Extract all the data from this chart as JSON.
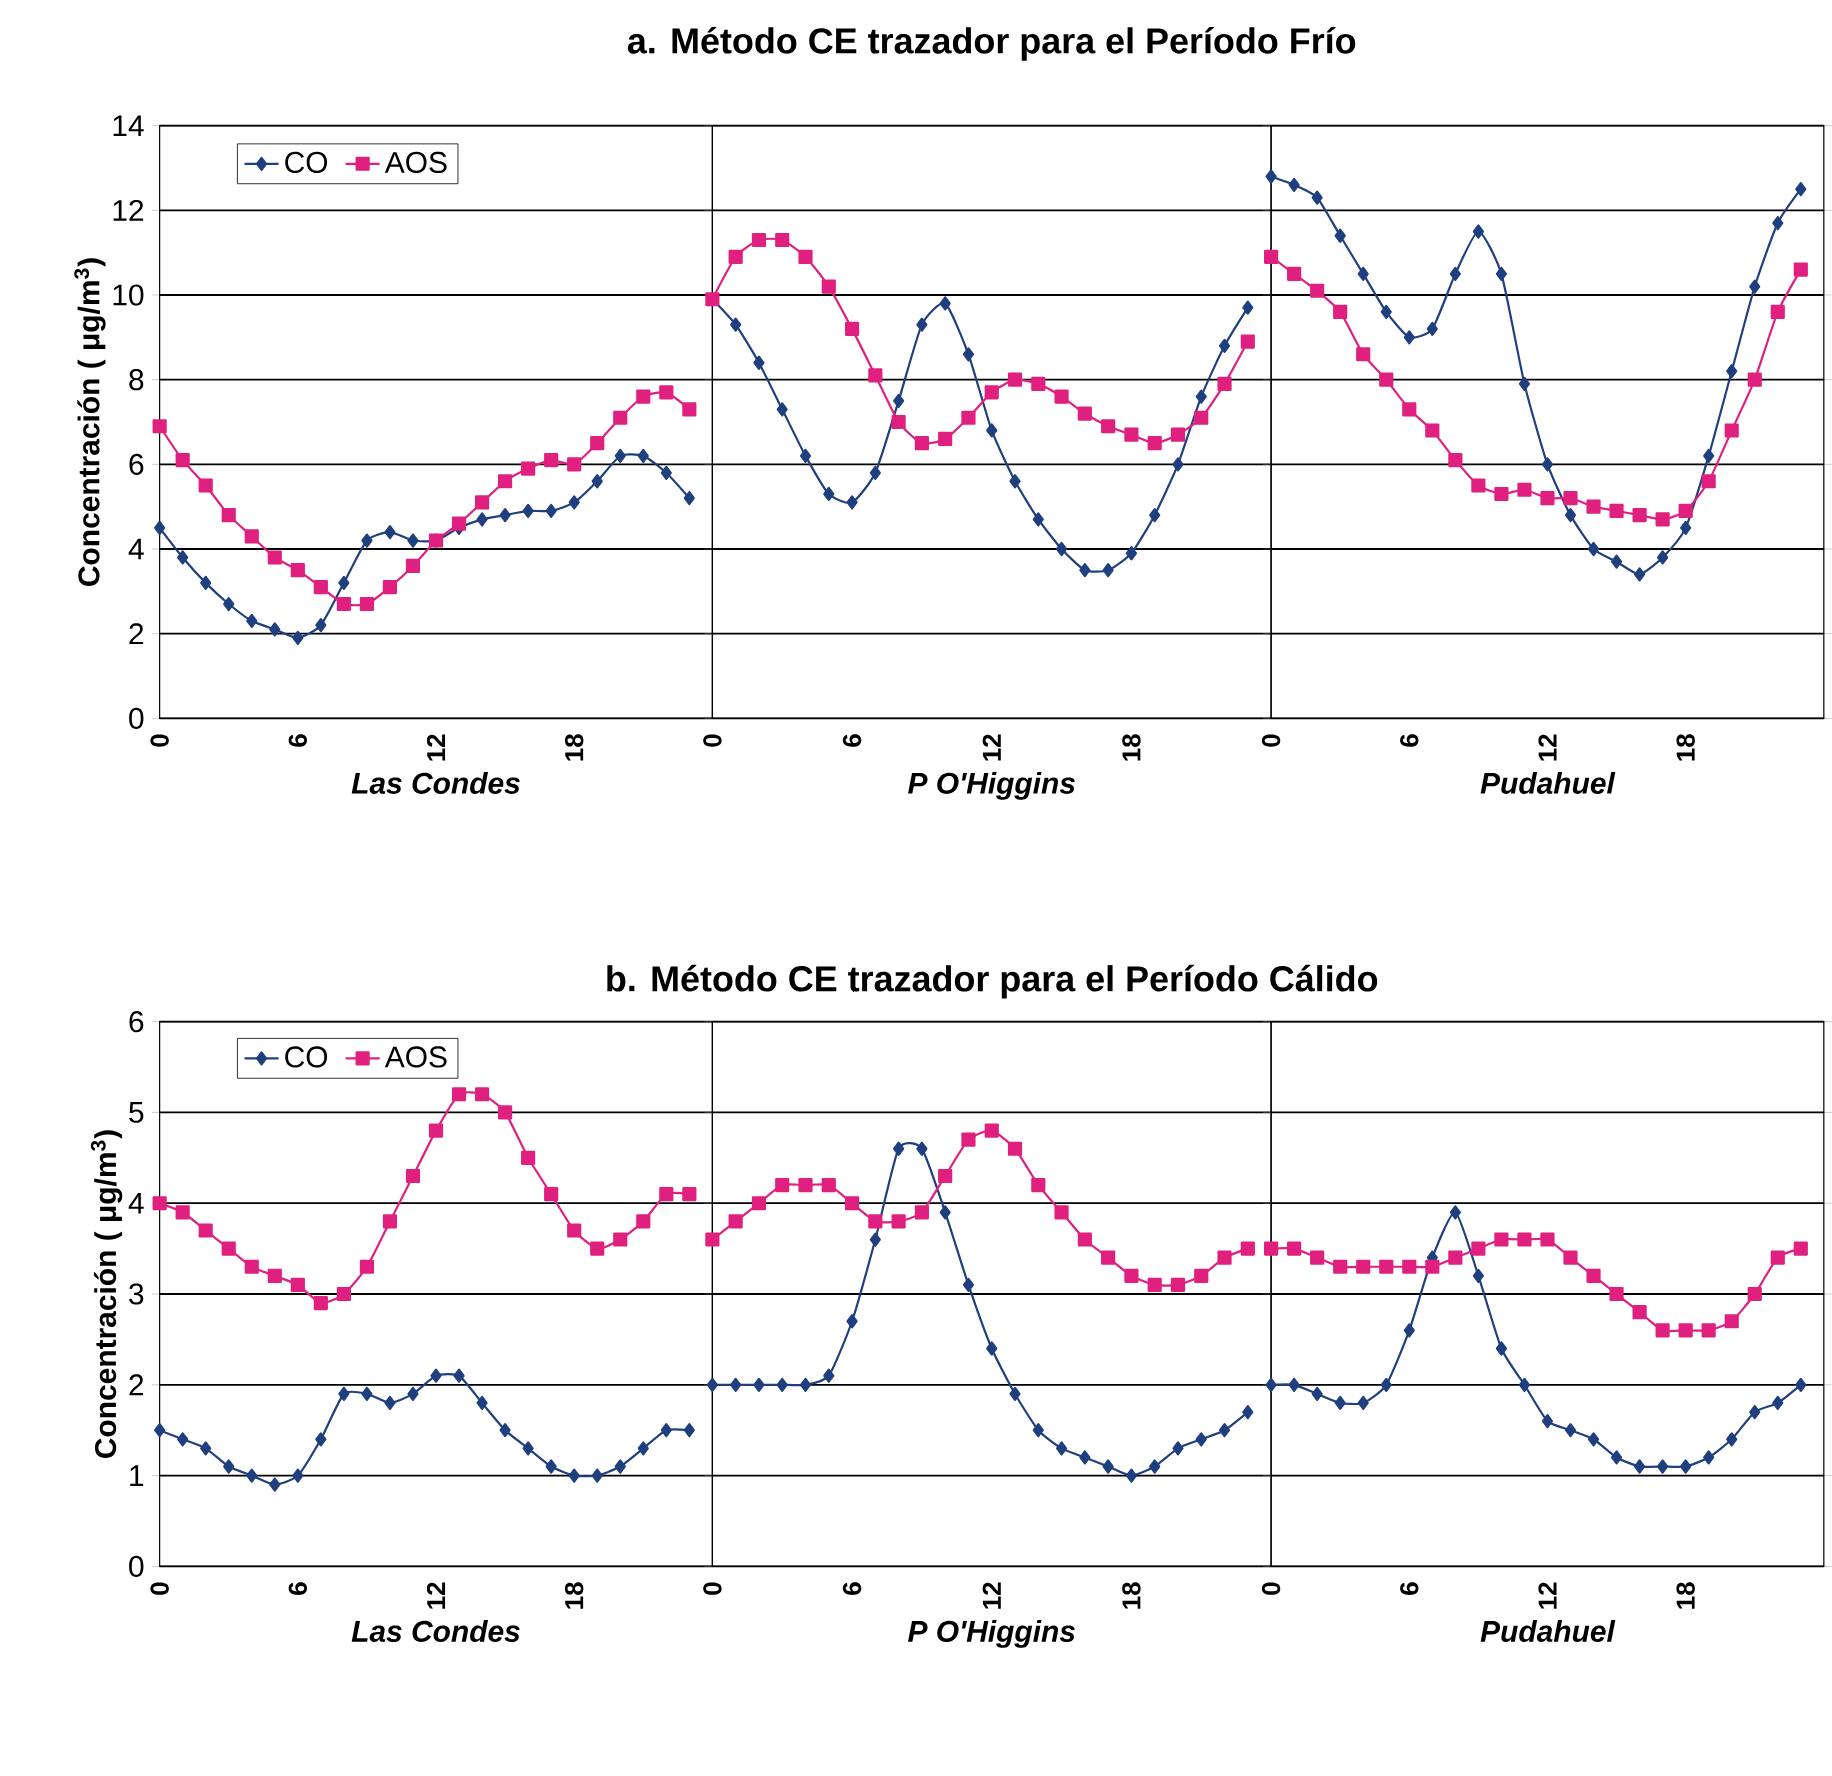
{
  "chart_data": [
    {
      "type": "line",
      "xlabel": "Las Condes",
      "ylabel": "Concentración ( μg/m$^{3}$)",
      "x": [
        0,
        1,
        2,
        3,
        4,
        5,
        6,
        7,
        8,
        9,
        10,
        11,
        12,
        13,
        14,
        15,
        16,
        17,
        18,
        19,
        20,
        21,
        22,
        23
      ],
      "xlim": [
        0,
        24
      ],
      "xticks": [
        0,
        6,
        12,
        18
      ],
      "ylim": [
        0,
        14
      ],
      "yticks": [
        0,
        2,
        4,
        6,
        8,
        10,
        12,
        14
      ],
      "grid": "y",
      "legend": "top left",
      "line_style": "solid",
      "series": [
        {
          "name": "CO",
          "color": "#1f3f7f",
          "marker": "diamond",
          "values": [
            4.5,
            3.8,
            3.2,
            2.7,
            2.3,
            2.1,
            1.9,
            2.2,
            3.2,
            4.2,
            4.4,
            4.2,
            4.2,
            4.5,
            4.7,
            4.8,
            4.9,
            4.9,
            5.1,
            5.6,
            6.2,
            6.2,
            5.8,
            5.2
          ]
        },
        {
          "name": "AOS",
          "color": "#e0207f",
          "marker": "square",
          "values": [
            6.9,
            6.1,
            5.5,
            4.8,
            4.3,
            3.8,
            3.5,
            3.1,
            2.7,
            2.7,
            3.1,
            3.6,
            4.2,
            4.6,
            5.1,
            5.6,
            5.9,
            6.1,
            6.0,
            6.5,
            7.1,
            7.6,
            7.7,
            7.3
          ]
        }
      ]
    },
    {
      "type": "line",
      "title": "a. Método CE trazador para el Período Frío",
      "xlabel": "P O'Higgins",
      "x": [
        0,
        1,
        2,
        3,
        4,
        5,
        6,
        7,
        8,
        9,
        10,
        11,
        12,
        13,
        14,
        15,
        16,
        17,
        18,
        19,
        20,
        21,
        22,
        23
      ],
      "xlim": [
        0,
        24
      ],
      "xticks": [
        0,
        6,
        12,
        18
      ],
      "ylim": [
        0,
        14
      ],
      "yticks": [
        0,
        2,
        4,
        6,
        8,
        10,
        12,
        14
      ],
      "grid": "y",
      "tick_labels": "x",
      "line_style": "solid",
      "series": [
        {
          "color": "#1f3f7f",
          "marker": "diamond",
          "values": [
            9.9,
            9.3,
            8.4,
            7.3,
            6.2,
            5.3,
            5.1,
            5.8,
            7.5,
            9.3,
            9.8,
            8.6,
            6.8,
            5.6,
            4.7,
            4.0,
            3.5,
            3.5,
            3.9,
            4.8,
            6.0,
            7.6,
            8.8,
            9.7
          ]
        },
        {
          "color": "#e0207f",
          "marker": "square",
          "values": [
            9.9,
            10.9,
            11.3,
            11.3,
            10.9,
            10.2,
            9.2,
            8.1,
            7.0,
            6.5,
            6.6,
            7.1,
            7.7,
            8.0,
            7.9,
            7.6,
            7.2,
            6.9,
            6.7,
            6.5,
            6.7,
            7.1,
            7.9,
            8.9
          ]
        }
      ]
    },
    {
      "type": "line",
      "xlabel": "Pudahuel",
      "x": [
        0,
        1,
        2,
        3,
        4,
        5,
        6,
        7,
        8,
        9,
        10,
        11,
        12,
        13,
        14,
        15,
        16,
        17,
        18,
        19,
        20,
        21,
        22,
        23
      ],
      "xlim": [
        0,
        24
      ],
      "xticks": [
        0,
        6,
        12,
        18
      ],
      "ylim": [
        0,
        14
      ],
      "yticks": [
        0,
        2,
        4,
        6,
        8,
        10,
        12,
        14
      ],
      "grid": "y",
      "tick_labels": "x",
      "line_style": "solid",
      "series": [
        {
          "color": "#1f3f7f",
          "marker": "diamond",
          "values": [
            12.8,
            12.6,
            12.3,
            11.4,
            10.5,
            9.6,
            9.0,
            9.2,
            10.5,
            11.5,
            10.5,
            7.9,
            6.0,
            4.8,
            4.0,
            3.7,
            3.4,
            3.8,
            4.5,
            6.2,
            8.2,
            10.2,
            11.7,
            12.5
          ]
        },
        {
          "color": "#e0207f",
          "marker": "square",
          "values": [
            10.9,
            10.5,
            10.1,
            9.6,
            8.6,
            8.0,
            7.3,
            6.8,
            6.1,
            5.5,
            5.3,
            5.4,
            5.2,
            5.2,
            5.0,
            4.9,
            4.8,
            4.7,
            4.9,
            5.6,
            6.8,
            8.0,
            9.6,
            10.6
          ]
        }
      ]
    },
    {
      "type": "line",
      "xlabel": "Las Condes",
      "ylabel": "Concentración ( μg/m$^{3}$)",
      "x": [
        0,
        1,
        2,
        3,
        4,
        5,
        6,
        7,
        8,
        9,
        10,
        11,
        12,
        13,
        14,
        15,
        16,
        17,
        18,
        19,
        20,
        21,
        22,
        23
      ],
      "xlim": [
        0,
        24
      ],
      "xticks": [
        0,
        6,
        12,
        18
      ],
      "ylim": [
        0,
        6
      ],
      "yticks": [
        0,
        1,
        2,
        3,
        4,
        5,
        6
      ],
      "grid": "y",
      "legend": "top left",
      "line_style": "solid",
      "series": [
        {
          "name": "CO",
          "color": "#1f3f7f",
          "marker": "diamond",
          "values": [
            1.5,
            1.4,
            1.3,
            1.1,
            1.0,
            0.9,
            1.0,
            1.4,
            1.9,
            1.9,
            1.8,
            1.9,
            2.1,
            2.1,
            1.8,
            1.5,
            1.3,
            1.1,
            1.0,
            1.0,
            1.1,
            1.3,
            1.5,
            1.5
          ]
        },
        {
          "name": "AOS",
          "color": "#e0207f",
          "marker": "square",
          "values": [
            4.0,
            3.9,
            3.7,
            3.5,
            3.3,
            3.2,
            3.1,
            2.9,
            3.0,
            3.3,
            3.8,
            4.3,
            4.8,
            5.2,
            5.2,
            5.0,
            4.5,
            4.1,
            3.7,
            3.5,
            3.6,
            3.8,
            4.1,
            4.1
          ]
        }
      ]
    },
    {
      "type": "line",
      "title": "b. Método CE trazador para el Período Cálido",
      "xlabel": "P O'Higgins",
      "x": [
        0,
        1,
        2,
        3,
        4,
        5,
        6,
        7,
        8,
        9,
        10,
        11,
        12,
        13,
        14,
        15,
        16,
        17,
        18,
        19,
        20,
        21,
        22,
        23
      ],
      "xlim": [
        0,
        24
      ],
      "xticks": [
        0,
        6,
        12,
        18
      ],
      "ylim": [
        0,
        6
      ],
      "yticks": [
        0,
        1,
        2,
        3,
        4,
        5,
        6
      ],
      "grid": "y",
      "tick_labels": "x",
      "line_style": "solid",
      "series": [
        {
          "color": "#1f3f7f",
          "marker": "diamond",
          "values": [
            2.0,
            2.0,
            2.0,
            2.0,
            2.0,
            2.1,
            2.7,
            3.6,
            4.6,
            4.6,
            3.9,
            3.1,
            2.4,
            1.9,
            1.5,
            1.3,
            1.2,
            1.1,
            1.0,
            1.1,
            1.3,
            1.4,
            1.5,
            1.7
          ]
        },
        {
          "color": "#e0207f",
          "marker": "square",
          "values": [
            3.6,
            3.8,
            4.0,
            4.2,
            4.2,
            4.2,
            4.0,
            3.8,
            3.8,
            3.9,
            4.3,
            4.7,
            4.8,
            4.6,
            4.2,
            3.9,
            3.6,
            3.4,
            3.2,
            3.1,
            3.1,
            3.2,
            3.4,
            3.5
          ]
        }
      ]
    },
    {
      "type": "line",
      "xlabel": "Pudahuel",
      "x": [
        0,
        1,
        2,
        3,
        4,
        5,
        6,
        7,
        8,
        9,
        10,
        11,
        12,
        13,
        14,
        15,
        16,
        17,
        18,
        19,
        20,
        21,
        22,
        23
      ],
      "xlim": [
        0,
        24
      ],
      "xticks": [
        0,
        6,
        12,
        18
      ],
      "ylim": [
        0,
        6
      ],
      "yticks": [
        0,
        1,
        2,
        3,
        4,
        5,
        6
      ],
      "grid": "y",
      "tick_labels": "x",
      "line_style": "solid",
      "series": [
        {
          "color": "#1f3f7f",
          "marker": "diamond",
          "values": [
            2.0,
            2.0,
            1.9,
            1.8,
            1.8,
            2.0,
            2.6,
            3.4,
            3.9,
            3.2,
            2.4,
            2.0,
            1.6,
            1.5,
            1.4,
            1.2,
            1.1,
            1.1,
            1.1,
            1.2,
            1.4,
            1.7,
            1.8,
            2.0
          ]
        },
        {
          "color": "#e0207f",
          "marker": "square",
          "values": [
            3.5,
            3.5,
            3.4,
            3.3,
            3.3,
            3.3,
            3.3,
            3.3,
            3.4,
            3.5,
            3.6,
            3.6,
            3.6,
            3.4,
            3.2,
            3.0,
            2.8,
            2.6,
            2.6,
            2.6,
            2.7,
            3.0,
            3.4,
            3.5
          ]
        }
      ]
    }
  ]
}
